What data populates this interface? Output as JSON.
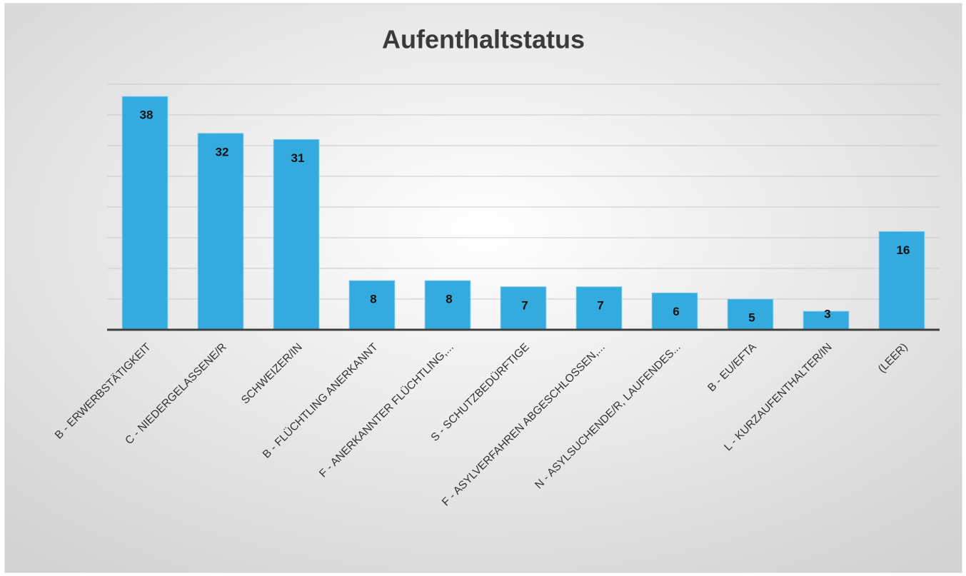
{
  "chart_data": {
    "type": "bar",
    "title": "Aufenthaltstatus",
    "categories": [
      "B - ERWERBSTÄTIGKEIT",
      "C - NIEDERGELASSENE/R",
      "SCHWEIZER/IN",
      "B - FLÜCHTLING ANERKANNT",
      "F - ANERKANNTER FLÜCHTLING,...",
      "S - SCHUTZBEDÜRFTIGE",
      "F - ASYLVERFAHREN ABGESCHLOSSEN,...",
      "N - ASYLSUCHENDE/R, LAUFENDES...",
      "B - EU/EFTA",
      "L - KURZAUFENTHALTER/IN",
      "(LEER)"
    ],
    "values": [
      38,
      32,
      31,
      8,
      8,
      7,
      7,
      6,
      5,
      3,
      16
    ],
    "color": "#34abdf",
    "ylim": [
      0,
      40
    ],
    "yticks": [
      0,
      5,
      10,
      15,
      20,
      25,
      30,
      35,
      40
    ],
    "grid": true
  }
}
